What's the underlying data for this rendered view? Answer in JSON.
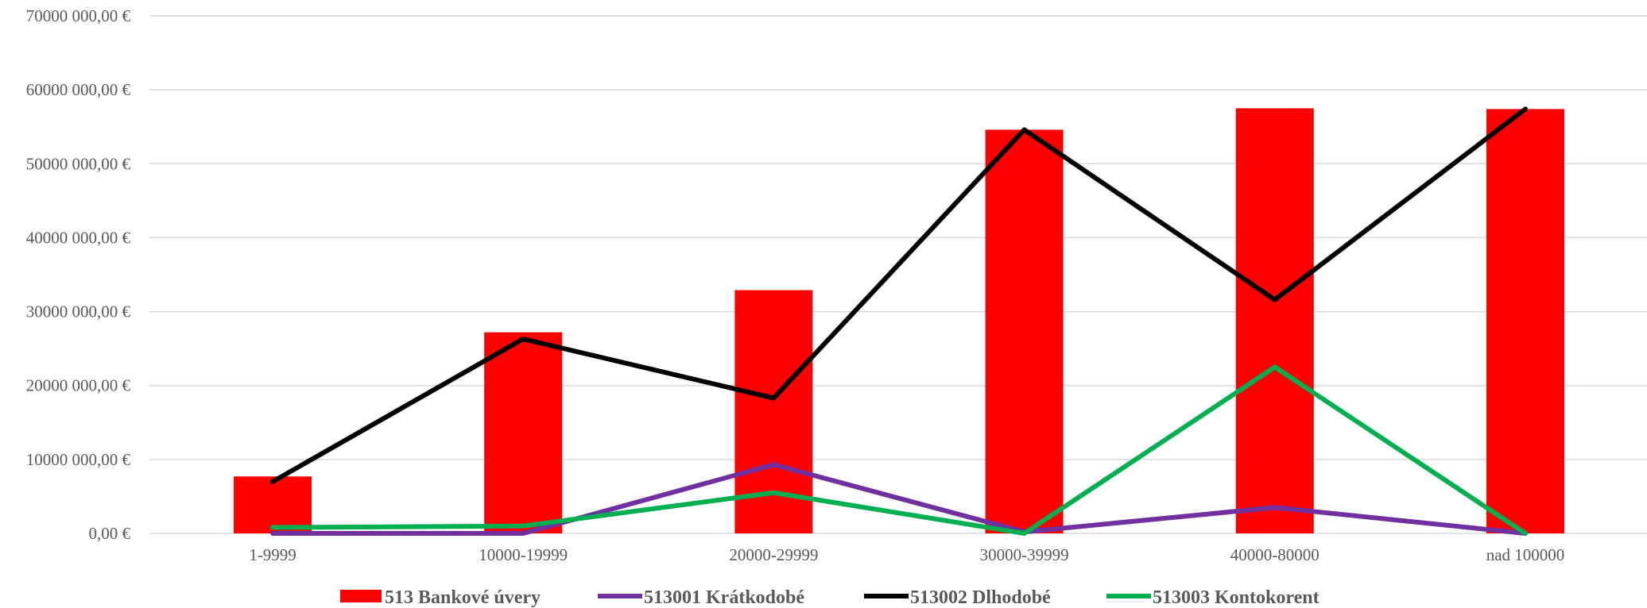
{
  "chart_data": {
    "type": "bar",
    "title": "",
    "xlabel": "",
    "ylabel": "",
    "categories": [
      "1-9999",
      "10000-19999",
      "20000-29999",
      "30000-39999",
      "40000-80000",
      "nad 100000"
    ],
    "ylim": [
      0,
      70000000
    ],
    "y_ticks": [
      0,
      10000000,
      20000000,
      30000000,
      40000000,
      50000000,
      60000000,
      70000000
    ],
    "y_tick_labels": [
      "0,00 €",
      "10000 000,00 €",
      "20000 000,00 €",
      "30000 000,00 €",
      "40000 000,00 €",
      "50000 000,00 €",
      "60000 000,00 €",
      "70000 000,00 €"
    ],
    "grid": true,
    "legend": "bottom",
    "series": [
      {
        "name": "513 Bankové úvery",
        "type": "bar",
        "color": "#ff0000",
        "values": [
          7700000,
          27200000,
          32900000,
          54600000,
          57500000,
          57400000
        ]
      },
      {
        "name": "513001 Krátkodobé",
        "type": "line",
        "color": "#7030a0",
        "values": [
          0,
          0,
          9300000,
          200000,
          3500000,
          0
        ]
      },
      {
        "name": "513002 Dlhodobé",
        "type": "line",
        "color": "#000000",
        "values": [
          7000000,
          26300000,
          18300000,
          54600000,
          31600000,
          57400000
        ]
      },
      {
        "name": "513003 Kontokorent",
        "type": "line",
        "color": "#00b050",
        "values": [
          800000,
          1000000,
          5500000,
          0,
          22500000,
          0
        ]
      }
    ]
  }
}
